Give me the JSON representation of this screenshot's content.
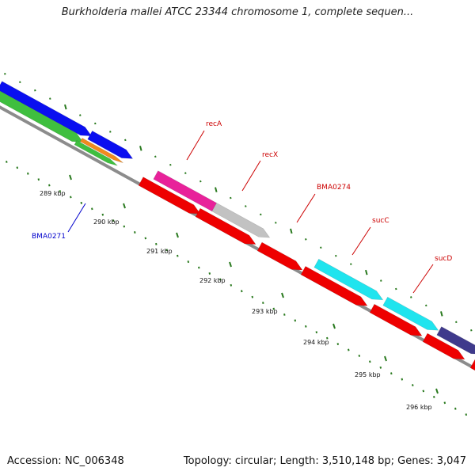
{
  "header": {
    "title": "Burkholderia mallei ATCC 23344 chromosome 1, complete sequen..."
  },
  "footer": {
    "accession": "Accession: NC_006348",
    "stats": "Topology: circular; Length: 3,510,148 bp; Genes: 3,047"
  },
  "colors": {
    "backbone": "#8c8c8c",
    "tick": "#2a7a1f",
    "label_red": "#cc0000",
    "label_blue": "#0000cc"
  },
  "ticks": [
    {
      "label": "289 kbp"
    },
    {
      "label": "290 kbp"
    },
    {
      "label": "291 kbp"
    },
    {
      "label": "292 kbp"
    },
    {
      "label": "293 kbp"
    },
    {
      "label": "294 kbp"
    },
    {
      "label": "295 kbp"
    },
    {
      "label": "296 kbp"
    }
  ],
  "features": [
    {
      "name": "gene-blue-1",
      "color": "#0a0ff0"
    },
    {
      "name": "gene-blue-2",
      "color": "#0a0ff0"
    },
    {
      "name": "gene-green-1",
      "color": "#3fbf3f"
    },
    {
      "name": "gene-green-2",
      "color": "#3fbf3f"
    },
    {
      "name": "gene-orange",
      "color": "#f08a1e"
    },
    {
      "name": "gene-magenta",
      "color": "#e8229a"
    },
    {
      "name": "gene-grey",
      "color": "#c2c2c2"
    },
    {
      "name": "gene-cyan-1",
      "color": "#20e4ee"
    },
    {
      "name": "gene-cyan-2",
      "color": "#20e4ee"
    },
    {
      "name": "gene-navy",
      "color": "#3f3a8c"
    },
    {
      "name": "cds-red-1",
      "color": "#ee0000"
    },
    {
      "name": "cds-red-2",
      "color": "#ee0000"
    },
    {
      "name": "cds-red-3",
      "color": "#ee0000"
    },
    {
      "name": "cds-red-4",
      "color": "#ee0000"
    },
    {
      "name": "cds-red-5",
      "color": "#ee0000"
    },
    {
      "name": "cds-red-6",
      "color": "#ee0000"
    },
    {
      "name": "cds-red-7",
      "color": "#ee0000"
    }
  ],
  "gene_labels": [
    {
      "name": "recA",
      "text": "recA",
      "color": "#cc0000"
    },
    {
      "name": "recX",
      "text": "recX",
      "color": "#cc0000"
    },
    {
      "name": "BMA0274",
      "text": "BMA0274",
      "color": "#cc0000"
    },
    {
      "name": "sucC",
      "text": "sucC",
      "color": "#cc0000"
    },
    {
      "name": "sucD",
      "text": "sucD",
      "color": "#cc0000"
    },
    {
      "name": "BMA0271",
      "text": "BMA0271",
      "color": "#0000cc"
    }
  ]
}
